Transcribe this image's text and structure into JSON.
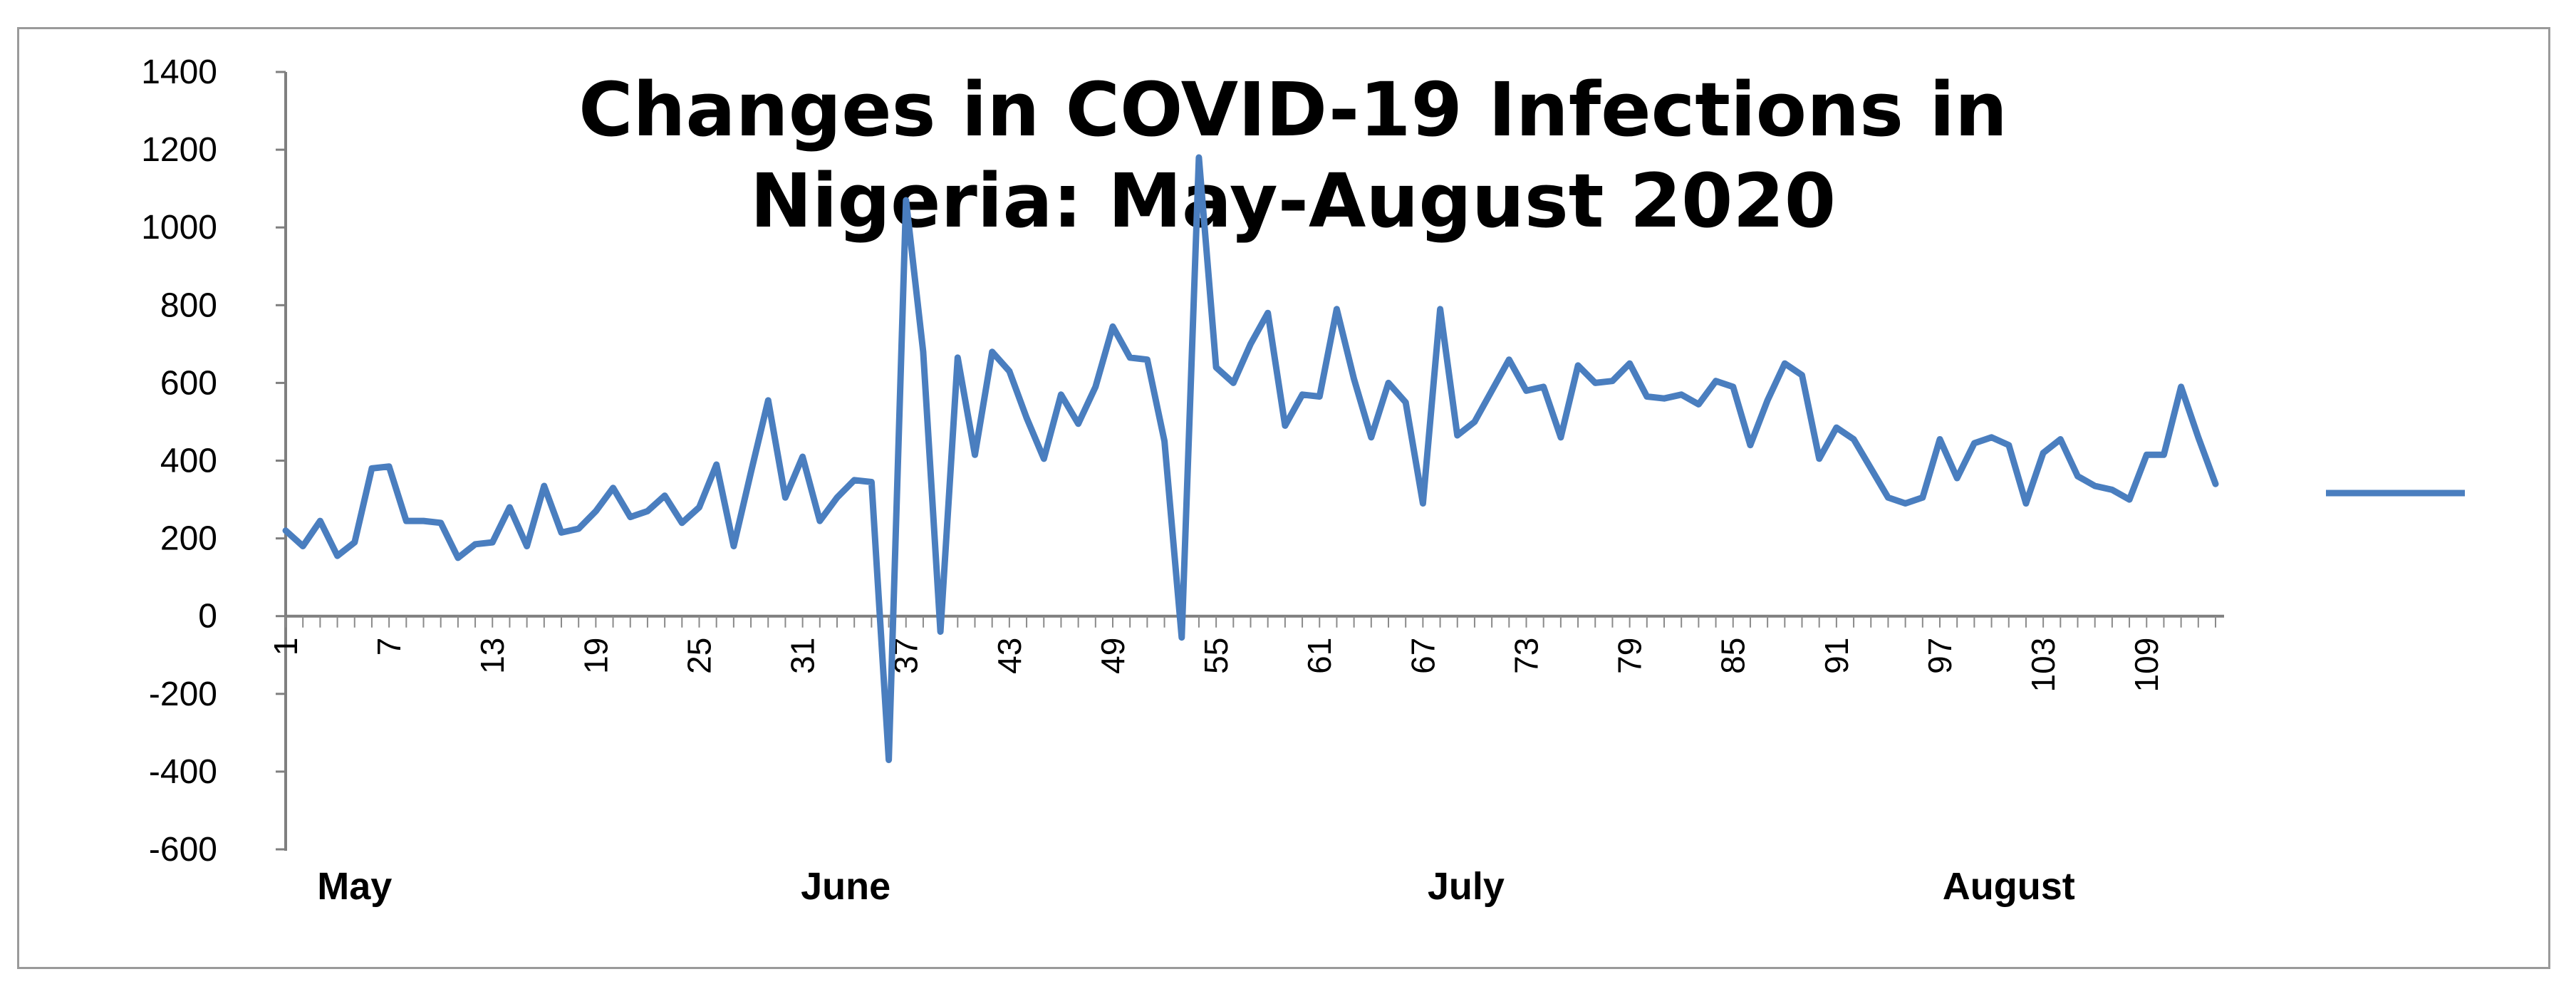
{
  "chart_data": {
    "type": "line",
    "title_lines": [
      "Changes in COVID-19 Infections in",
      "Nigeria: May-August 2020"
    ],
    "xlabel": "",
    "ylabel": "",
    "ylim": [
      -600,
      1400
    ],
    "yticks": [
      1400,
      1200,
      1000,
      800,
      600,
      400,
      200,
      0,
      -200,
      -400,
      -600
    ],
    "xticks": [
      1,
      7,
      13,
      19,
      25,
      31,
      37,
      43,
      49,
      55,
      61,
      67,
      73,
      79,
      85,
      91,
      97,
      103,
      109
    ],
    "month_labels": [
      {
        "text": "May",
        "at": 5
      },
      {
        "text": "June",
        "at": 33.5
      },
      {
        "text": "July",
        "at": 69.5
      },
      {
        "text": "August",
        "at": 101
      }
    ],
    "grid": false,
    "legend": "right",
    "color": "#4a7ebf",
    "series": [
      {
        "x_start": 1,
        "values": [
          220,
          180,
          245,
          155,
          190,
          380,
          385,
          245,
          245,
          240,
          150,
          185,
          190,
          280,
          180,
          335,
          215,
          225,
          270,
          330,
          255,
          270,
          310,
          240,
          280,
          390,
          180,
          370,
          555,
          305,
          410,
          245,
          305,
          350,
          345,
          -370,
          1070,
          680,
          -40,
          665,
          415,
          680,
          630,
          510,
          405,
          570,
          495,
          590,
          745,
          665,
          660,
          450,
          -55,
          1180,
          640,
          600,
          700,
          780,
          490,
          570,
          565,
          790,
          610,
          460,
          600,
          550,
          290,
          790,
          465,
          500,
          580,
          660,
          580,
          590,
          460,
          645,
          600,
          605,
          650,
          565,
          560,
          570,
          545,
          605,
          590,
          440,
          555,
          650,
          620,
          405,
          485,
          455,
          380,
          305,
          290,
          305,
          455,
          355,
          445,
          460,
          440,
          290,
          420,
          455,
          360,
          335,
          325,
          300,
          415,
          415,
          590,
          460,
          340
        ]
      }
    ]
  }
}
